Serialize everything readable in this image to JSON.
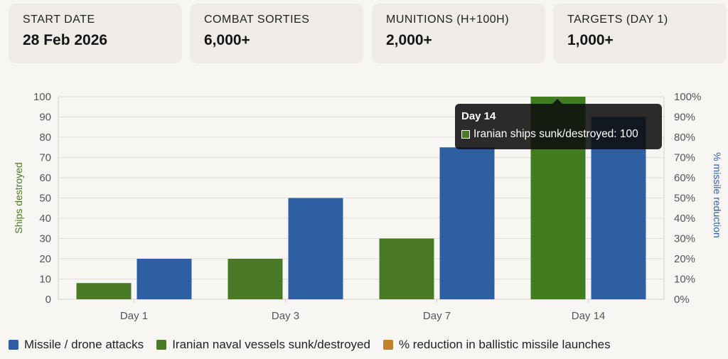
{
  "stats": [
    {
      "label": "START DATE",
      "value": "28 Feb 2026"
    },
    {
      "label": "COMBAT SORTIES",
      "value": "6,000+"
    },
    {
      "label": "MUNITIONS (H+100H)",
      "value": "2,000+"
    },
    {
      "label": "TARGETS (DAY 1)",
      "value": "1,000+"
    }
  ],
  "chart_data": {
    "type": "bar",
    "categories": [
      "Day 1",
      "Day 3",
      "Day 7",
      "Day 14"
    ],
    "series": [
      {
        "name": "Iranian naval vessels sunk/destroyed",
        "axis": "left",
        "color": "#4a7a26",
        "values": [
          8,
          20,
          30,
          100
        ]
      },
      {
        "name": "Missile / drone attacks",
        "axis": "right",
        "color": "#2e5fa3",
        "values": [
          20,
          50,
          75,
          90
        ]
      }
    ],
    "ylabel_left": "Ships destroyed",
    "ylabel_right": "% missile reduction",
    "ylim_left": [
      0,
      100
    ],
    "ylim_right": [
      0,
      100
    ],
    "yticks_left": [
      "0",
      "10",
      "20",
      "30",
      "40",
      "50",
      "60",
      "70",
      "80",
      "90",
      "100"
    ],
    "yticks_right": [
      "0%",
      "10%",
      "20%",
      "30%",
      "40%",
      "50%",
      "60%",
      "70%",
      "80%",
      "90%",
      "100%"
    ],
    "grid": true,
    "legend_position": "bottom-left"
  },
  "legend": [
    {
      "label": "Missile / drone attacks",
      "color": "#2e5fa3"
    },
    {
      "label": "Iranian naval vessels sunk/destroyed",
      "color": "#4a7a26"
    },
    {
      "label": "% reduction in ballistic missile launches",
      "color": "#c47f2c"
    }
  ],
  "tooltip": {
    "title": "Day 14",
    "text": "Iranian ships sunk/destroyed: 100",
    "color": "#4a7a26"
  },
  "colors": {
    "green_axis_label": "#4a7a26",
    "blue_axis_label": "#2e5fa3",
    "highlight_bar": "#3f7d20"
  }
}
